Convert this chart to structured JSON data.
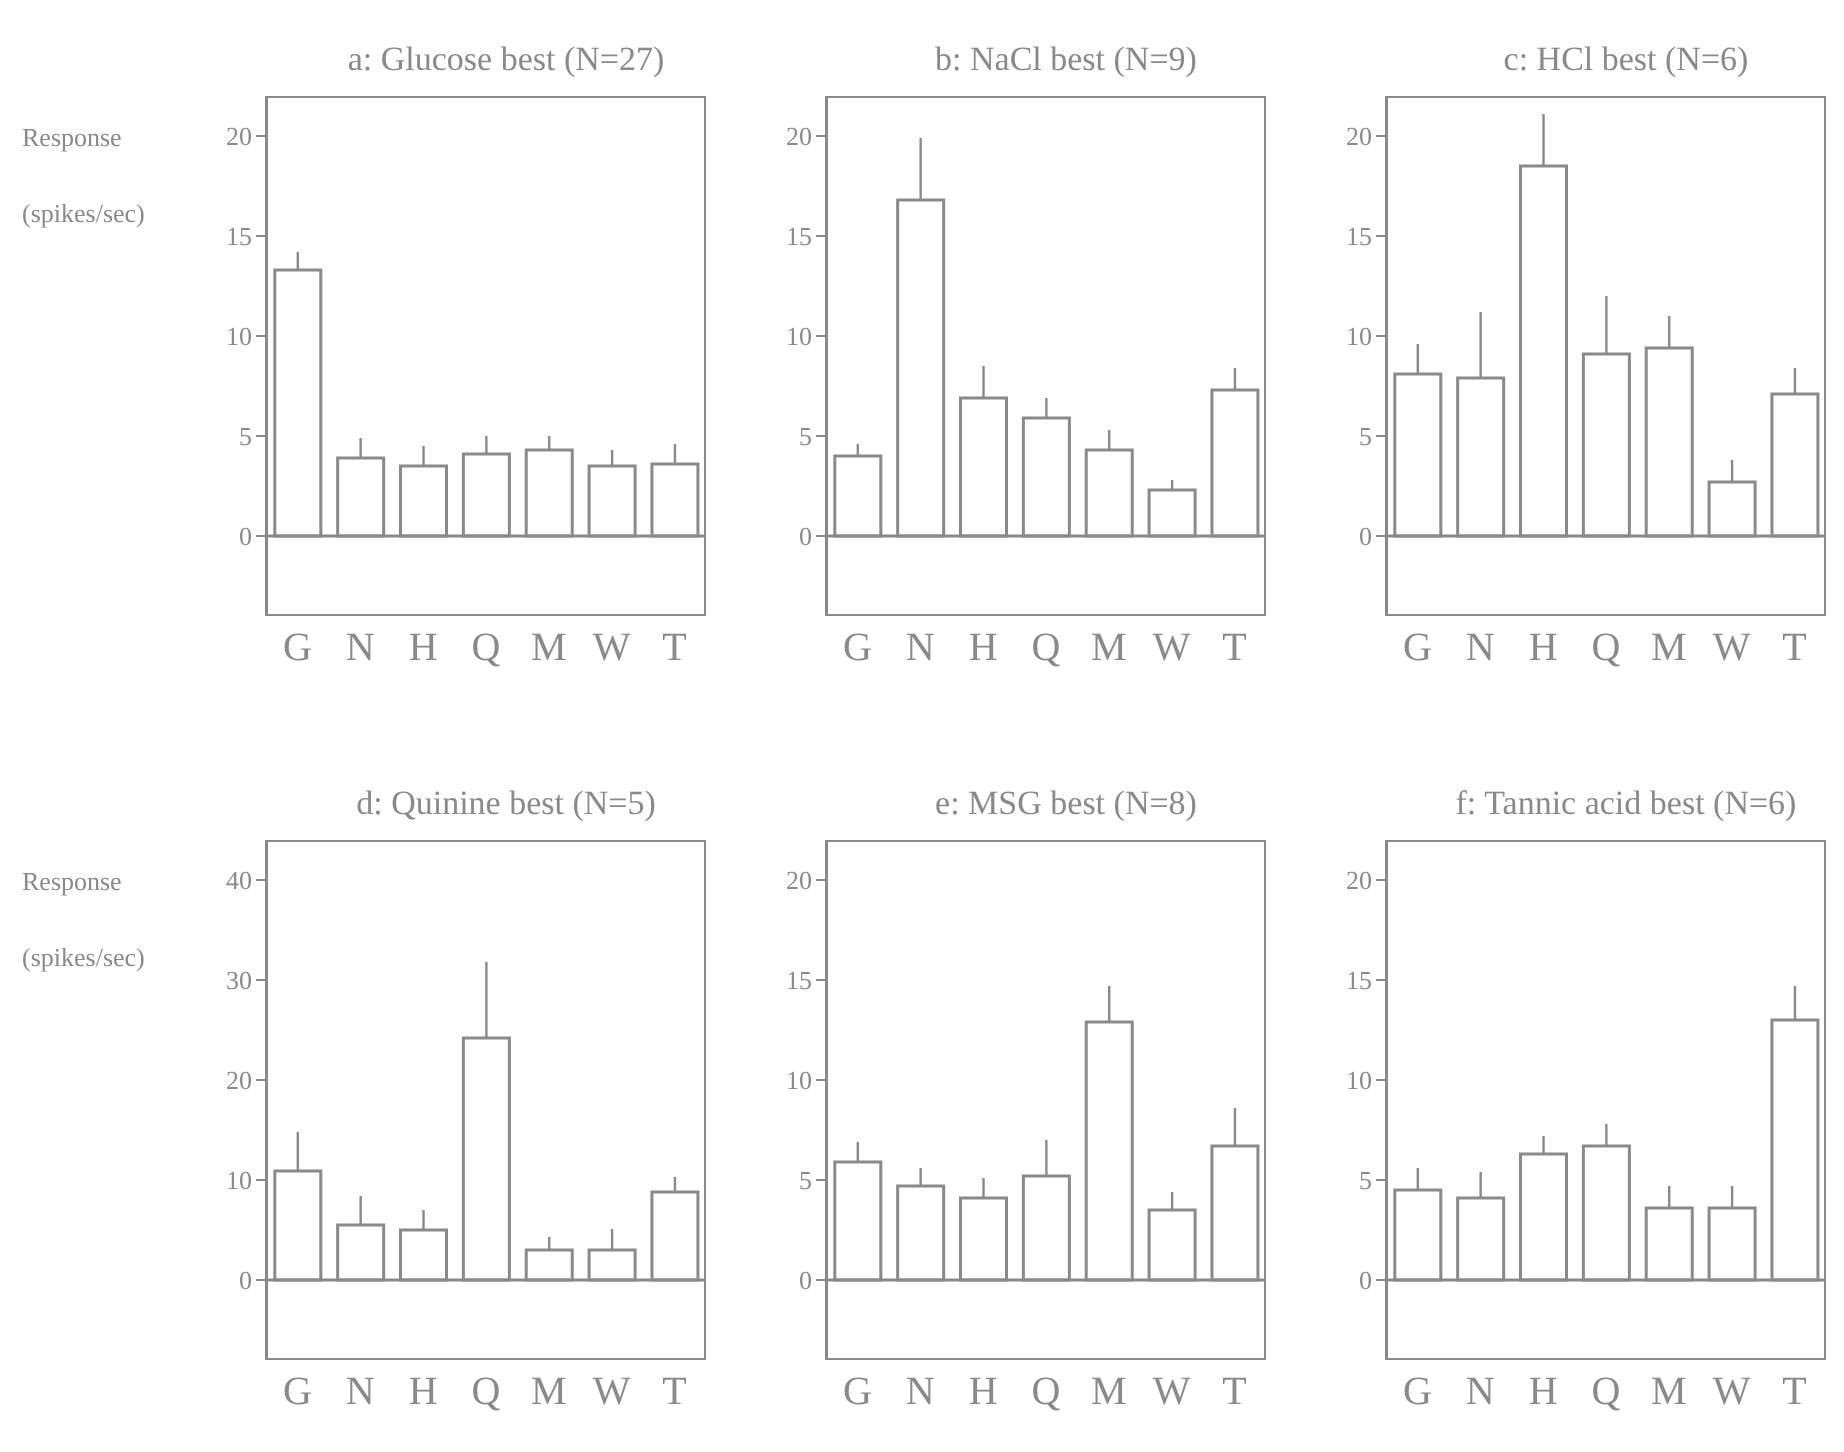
{
  "chart_data": [
    {
      "type": "bar",
      "title": "a: Glucose best (N=27)",
      "ylabel": "Response (spikes/sec)",
      "categories": [
        "G",
        "N",
        "H",
        "Q",
        "M",
        "W",
        "T"
      ],
      "values": [
        13.3,
        3.9,
        3.5,
        4.1,
        4.3,
        3.5,
        3.6
      ],
      "errors": [
        [
          13.3,
          14.2
        ],
        [
          3.9,
          4.9
        ],
        [
          3.5,
          4.5
        ],
        [
          4.1,
          5.0
        ],
        [
          4.3,
          5.0
        ],
        [
          3.5,
          4.3
        ],
        [
          3.6,
          4.6
        ]
      ],
      "color": "#ffffff",
      "ylim": [
        -4,
        22
      ],
      "yticks": [
        0,
        5,
        10,
        15,
        20
      ]
    },
    {
      "type": "bar",
      "title": "b: NaCl best (N=9)",
      "categories": [
        "G",
        "N",
        "H",
        "Q",
        "M",
        "W",
        "T"
      ],
      "values": [
        4.0,
        16.8,
        6.9,
        5.9,
        4.3,
        2.3,
        7.3
      ],
      "errors": [
        [
          4.0,
          4.6
        ],
        [
          16.8,
          19.9
        ],
        [
          6.9,
          8.5
        ],
        [
          5.9,
          6.9
        ],
        [
          4.3,
          5.3
        ],
        [
          2.3,
          2.8
        ],
        [
          7.3,
          8.4
        ]
      ],
      "color": "#ffffff",
      "ylim": [
        -4,
        22
      ],
      "yticks": [
        0,
        5,
        10,
        15,
        20
      ]
    },
    {
      "type": "bar",
      "title": "c: HCl best (N=6)",
      "categories": [
        "G",
        "N",
        "H",
        "Q",
        "M",
        "W",
        "T"
      ],
      "values": [
        8.1,
        7.9,
        18.5,
        9.1,
        9.4,
        2.7,
        7.1
      ],
      "errors": [
        [
          8.1,
          9.6
        ],
        [
          7.9,
          11.2
        ],
        [
          18.5,
          21.1
        ],
        [
          9.1,
          12.0
        ],
        [
          9.4,
          11.0
        ],
        [
          2.7,
          3.8
        ],
        [
          7.1,
          8.4
        ]
      ],
      "color": "#ffffff",
      "ylim": [
        -4,
        22
      ],
      "yticks": [
        0,
        5,
        10,
        15,
        20
      ]
    },
    {
      "type": "bar",
      "title": "d: Quinine best (N=5)",
      "ylabel": "Response (spikes/sec)",
      "categories": [
        "G",
        "N",
        "H",
        "Q",
        "M",
        "W",
        "T"
      ],
      "values": [
        10.9,
        5.5,
        5.0,
        24.2,
        3.0,
        3.0,
        8.8
      ],
      "errors": [
        [
          10.9,
          14.8
        ],
        [
          5.5,
          8.4
        ],
        [
          5.0,
          7.0
        ],
        [
          24.2,
          31.8
        ],
        [
          3.0,
          4.3
        ],
        [
          3.0,
          5.1
        ],
        [
          8.8,
          10.3
        ]
      ],
      "color": "#ffffff",
      "ylim": [
        -8,
        44
      ],
      "yticks": [
        0,
        10,
        20,
        30,
        40
      ]
    },
    {
      "type": "bar",
      "title": "e: MSG best (N=8)",
      "categories": [
        "G",
        "N",
        "H",
        "Q",
        "M",
        "W",
        "T"
      ],
      "values": [
        5.9,
        4.7,
        4.1,
        5.2,
        12.9,
        3.5,
        6.7
      ],
      "errors": [
        [
          5.9,
          6.9
        ],
        [
          4.7,
          5.6
        ],
        [
          4.1,
          5.1
        ],
        [
          5.2,
          7.0
        ],
        [
          12.9,
          14.7
        ],
        [
          3.5,
          4.4
        ],
        [
          6.7,
          8.6
        ]
      ],
      "color": "#ffffff",
      "ylim": [
        -4,
        22
      ],
      "yticks": [
        0,
        5,
        10,
        15,
        20
      ]
    },
    {
      "type": "bar",
      "title": "f: Tannic acid best (N=6)",
      "categories": [
        "G",
        "N",
        "H",
        "Q",
        "M",
        "W",
        "T"
      ],
      "values": [
        4.5,
        4.1,
        6.3,
        6.7,
        3.6,
        3.6,
        13.0
      ],
      "errors": [
        [
          4.5,
          5.6
        ],
        [
          4.1,
          5.4
        ],
        [
          6.3,
          7.2
        ],
        [
          6.7,
          7.8
        ],
        [
          3.6,
          4.7
        ],
        [
          3.6,
          4.7
        ],
        [
          13.0,
          14.7
        ]
      ],
      "color": "#ffffff",
      "ylim": [
        -4,
        22
      ],
      "yticks": [
        0,
        5,
        10,
        15,
        20
      ]
    }
  ]
}
